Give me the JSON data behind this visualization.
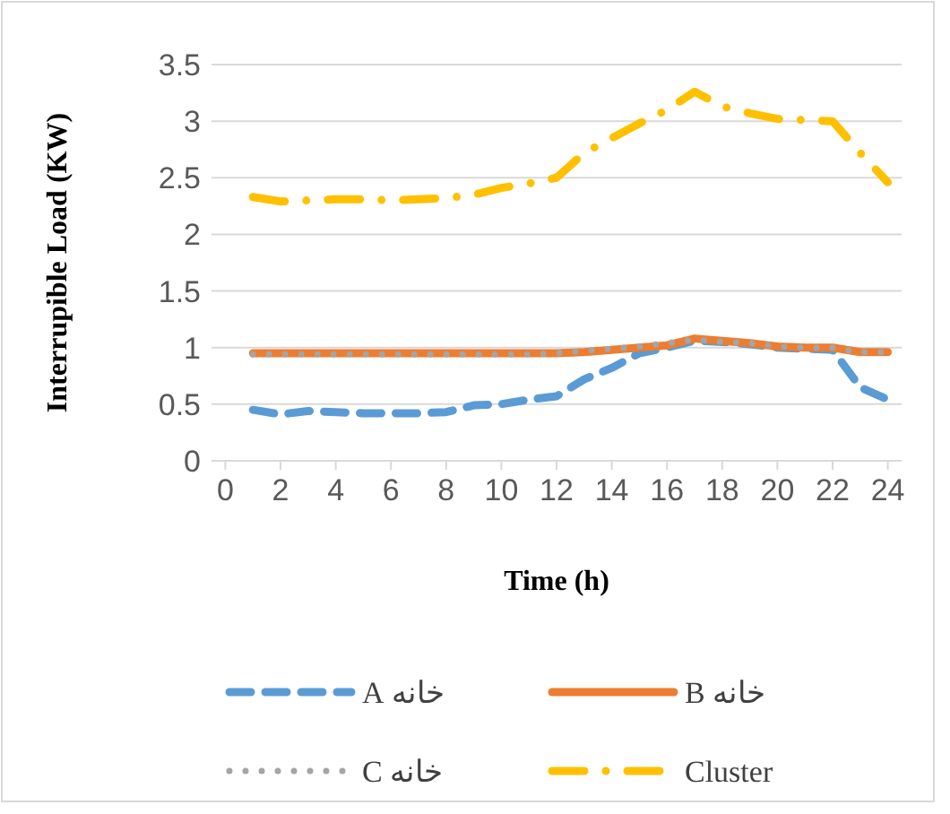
{
  "chart_data": {
    "type": "line",
    "xlabel": "Time (h)",
    "ylabel": "Interrupible Load (KW)",
    "x": [
      1,
      2,
      3,
      4,
      5,
      6,
      7,
      8,
      9,
      10,
      11,
      12,
      13,
      14,
      15,
      16,
      17,
      18,
      19,
      20,
      21,
      22,
      23,
      24
    ],
    "xlim": [
      -0.5,
      24.5
    ],
    "xticks": [
      0,
      2,
      4,
      6,
      8,
      10,
      12,
      14,
      16,
      18,
      20,
      22,
      24
    ],
    "ylim": [
      0,
      3.5
    ],
    "yticks": [
      0,
      0.5,
      1,
      1.5,
      2,
      2.5,
      3,
      3.5
    ],
    "grid": "y",
    "legend": "bottom",
    "series": [
      {
        "name": "خانه A",
        "color": "#5b9bd5",
        "line_style": "dashed",
        "values": [
          0.45,
          0.41,
          0.44,
          0.43,
          0.42,
          0.42,
          0.42,
          0.43,
          0.49,
          0.5,
          0.54,
          0.57,
          0.72,
          0.82,
          0.95,
          1.0,
          1.06,
          1.05,
          1.03,
          1.0,
          0.99,
          0.98,
          0.65,
          0.54
        ]
      },
      {
        "name": "خانه B",
        "color": "#ed7d31",
        "line_style": "solid",
        "values": [
          0.95,
          0.95,
          0.95,
          0.95,
          0.95,
          0.95,
          0.95,
          0.95,
          0.95,
          0.95,
          0.95,
          0.95,
          0.96,
          0.98,
          1.0,
          1.02,
          1.08,
          1.06,
          1.04,
          1.01,
          1.0,
          1.0,
          0.96,
          0.96
        ]
      },
      {
        "name": "خانه C",
        "color": "#a5a5a5",
        "line_style": "dotted",
        "values": [
          0.94,
          0.94,
          0.94,
          0.94,
          0.94,
          0.94,
          0.94,
          0.94,
          0.94,
          0.94,
          0.94,
          0.95,
          0.97,
          0.99,
          1.01,
          1.04,
          1.07,
          1.05,
          1.04,
          1.01,
          1.0,
          1.0,
          0.96,
          0.96
        ]
      },
      {
        "name": "Cluster",
        "color": "#ffc000",
        "line_style": "dashdot",
        "values": [
          2.33,
          2.29,
          2.3,
          2.31,
          2.31,
          2.3,
          2.31,
          2.32,
          2.35,
          2.41,
          2.45,
          2.5,
          2.72,
          2.85,
          2.98,
          3.1,
          3.26,
          3.13,
          3.07,
          3.02,
          3.01,
          3.0,
          2.72,
          2.46
        ]
      }
    ]
  }
}
